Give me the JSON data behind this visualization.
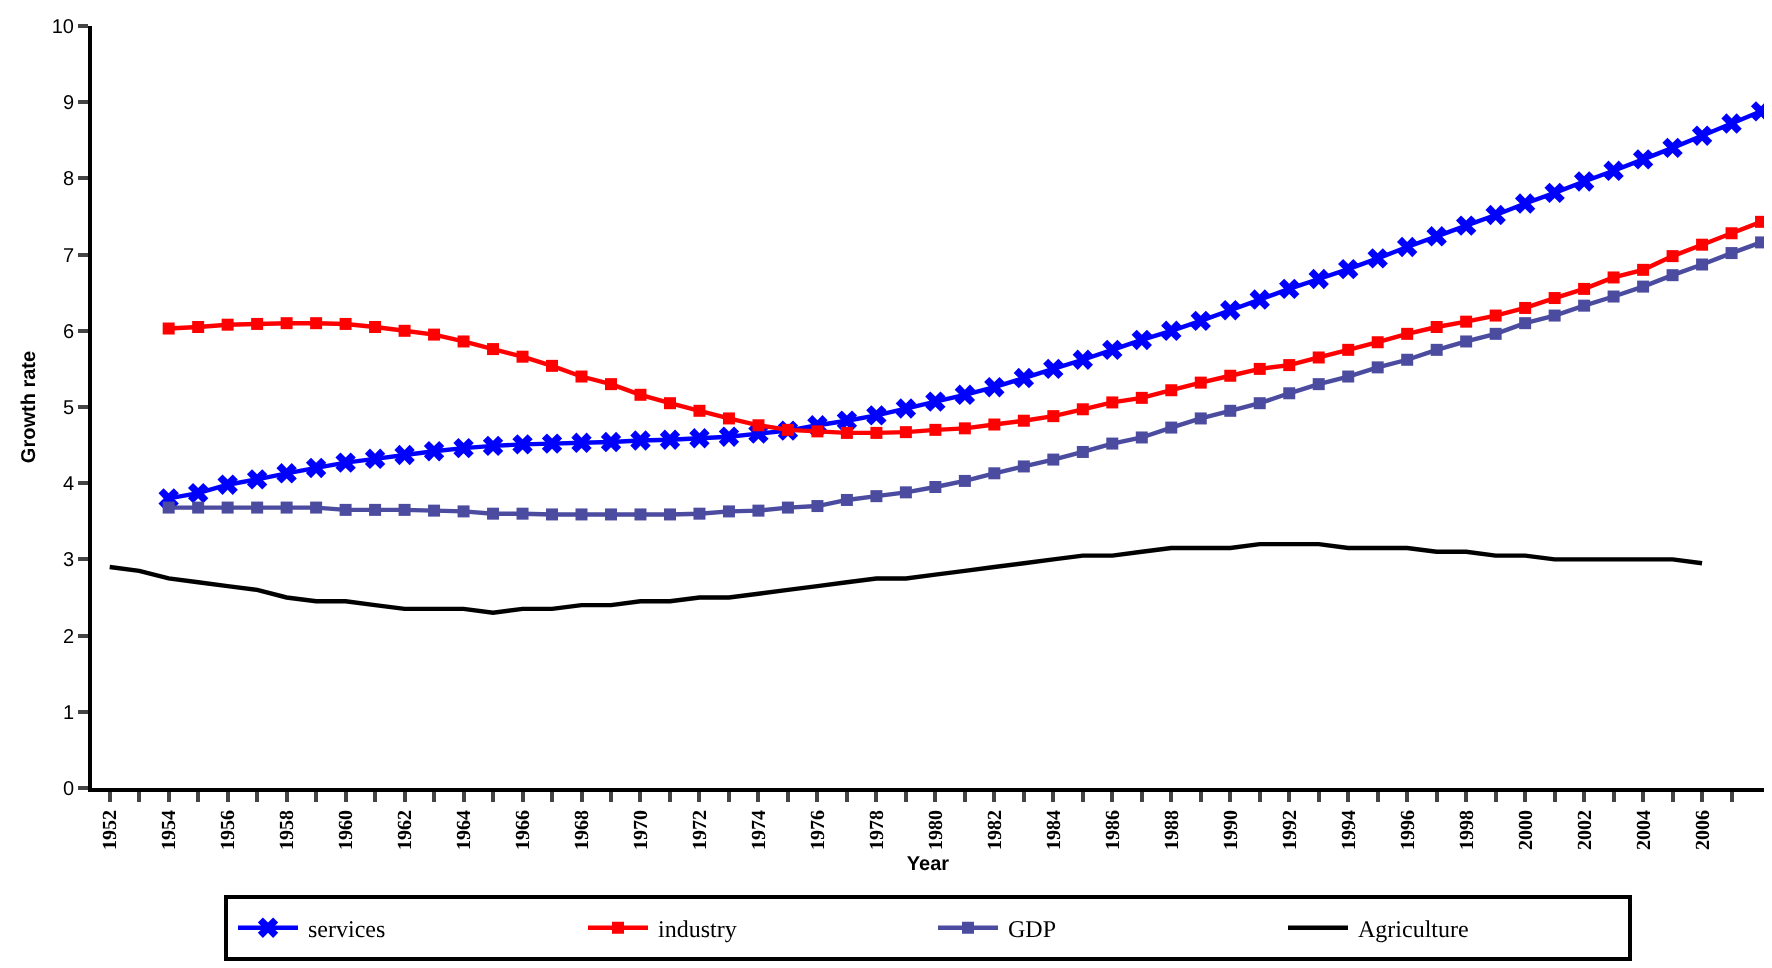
{
  "chart_data": {
    "type": "line",
    "xlabel": "Year",
    "ylabel": "Growth rate",
    "xlim": [
      1951.4,
      2008.1
    ],
    "ylim": [
      0,
      10
    ],
    "yticks": [
      0,
      1,
      2,
      3,
      4,
      5,
      6,
      7,
      8,
      9,
      10
    ],
    "xticks": [
      1952,
      {
        "value": 1953,
        "label": null
      },
      1954,
      {
        "value": 1955,
        "label": null
      },
      1956,
      {
        "value": 1957,
        "label": null
      },
      1958,
      {
        "value": 1959,
        "label": null
      },
      1960,
      {
        "value": 1961,
        "label": null
      },
      1962,
      {
        "value": 1963,
        "label": null
      },
      1964,
      {
        "value": 1965,
        "label": null
      },
      1966,
      {
        "value": 1967,
        "label": null
      },
      1968,
      {
        "value": 1969,
        "label": null
      },
      1970,
      {
        "value": 1971,
        "label": null
      },
      1972,
      {
        "value": 1973,
        "label": null
      },
      1974,
      {
        "value": 1975,
        "label": null
      },
      1976,
      {
        "value": 1977,
        "label": null
      },
      1978,
      {
        "value": 1979,
        "label": null
      },
      1980,
      {
        "value": 1981,
        "label": null
      },
      1982,
      {
        "value": 1983,
        "label": null
      },
      1984,
      {
        "value": 1985,
        "label": null
      },
      1986,
      {
        "value": 1987,
        "label": null
      },
      1988,
      {
        "value": 1989,
        "label": null
      },
      1990,
      {
        "value": 1991,
        "label": null
      },
      1992,
      {
        "value": 1993,
        "label": null
      },
      1994,
      {
        "value": 1995,
        "label": null
      },
      1996,
      {
        "value": 1997,
        "label": null
      },
      1998,
      {
        "value": 1999,
        "label": null
      },
      2000,
      {
        "value": 2001,
        "label": null
      },
      2002,
      {
        "value": 2003,
        "label": null
      },
      2004,
      {
        "value": 2005,
        "label": null
      },
      2006,
      {
        "value": 2007,
        "label": null
      }
    ],
    "grid": false,
    "legend": "bottom",
    "line_style": "solid",
    "series": [
      {
        "name": "services",
        "color": "#0000ff",
        "marker": "cross",
        "x": [
          1954,
          1955,
          1956,
          1957,
          1958,
          1959,
          1960,
          1961,
          1962,
          1963,
          1964,
          1965,
          1966,
          1967,
          1968,
          1969,
          1970,
          1971,
          1972,
          1973,
          1974,
          1975,
          1976,
          1977,
          1978,
          1979,
          1980,
          1981,
          1982,
          1983,
          1984,
          1985,
          1986,
          1987,
          1988,
          1989,
          1990,
          1991,
          1992,
          1993,
          1994,
          1995,
          1996,
          1997,
          1998,
          1999,
          2000,
          2001,
          2002,
          2003,
          2004,
          2005,
          2006,
          2007,
          2008
        ],
        "values": [
          3.8,
          3.87,
          3.98,
          4.05,
          4.13,
          4.2,
          4.27,
          4.32,
          4.37,
          4.42,
          4.46,
          4.49,
          4.51,
          4.52,
          4.53,
          4.54,
          4.56,
          4.57,
          4.59,
          4.61,
          4.65,
          4.69,
          4.76,
          4.82,
          4.89,
          4.98,
          5.07,
          5.16,
          5.26,
          5.38,
          5.5,
          5.62,
          5.75,
          5.88,
          6.0,
          6.13,
          6.27,
          6.41,
          6.55,
          6.68,
          6.81,
          6.95,
          7.1,
          7.24,
          7.38,
          7.52,
          7.67,
          7.81,
          7.96,
          8.1,
          8.25,
          8.4,
          8.56,
          8.72,
          8.88
        ]
      },
      {
        "name": "industry",
        "color": "#ff0000",
        "marker": "square",
        "x": [
          1954,
          1955,
          1956,
          1957,
          1958,
          1959,
          1960,
          1961,
          1962,
          1963,
          1964,
          1965,
          1966,
          1967,
          1968,
          1969,
          1970,
          1971,
          1972,
          1973,
          1974,
          1975,
          1976,
          1977,
          1978,
          1979,
          1980,
          1981,
          1982,
          1983,
          1984,
          1985,
          1986,
          1987,
          1988,
          1989,
          1990,
          1991,
          1992,
          1993,
          1994,
          1995,
          1996,
          1997,
          1998,
          1999,
          2000,
          2001,
          2002,
          2003,
          2004,
          2005,
          2006,
          2007,
          2008
        ],
        "values": [
          6.03,
          6.05,
          6.08,
          6.09,
          6.1,
          6.1,
          6.09,
          6.05,
          6.0,
          5.95,
          5.86,
          5.76,
          5.66,
          5.54,
          5.4,
          5.3,
          5.16,
          5.05,
          4.95,
          4.85,
          4.76,
          4.7,
          4.68,
          4.66,
          4.66,
          4.67,
          4.7,
          4.72,
          4.77,
          4.82,
          4.88,
          4.97,
          5.06,
          5.12,
          5.22,
          5.32,
          5.41,
          5.5,
          5.55,
          5.65,
          5.75,
          5.85,
          5.96,
          6.05,
          6.12,
          6.2,
          6.3,
          6.43,
          6.55,
          6.7,
          6.8,
          6.98,
          7.13,
          7.28,
          7.43
        ]
      },
      {
        "name": "GDP",
        "color": "#4b4ba0",
        "marker": "square",
        "x": [
          1954,
          1955,
          1956,
          1957,
          1958,
          1959,
          1960,
          1961,
          1962,
          1963,
          1964,
          1965,
          1966,
          1967,
          1968,
          1969,
          1970,
          1971,
          1972,
          1973,
          1974,
          1975,
          1976,
          1977,
          1978,
          1979,
          1980,
          1981,
          1982,
          1983,
          1984,
          1985,
          1986,
          1987,
          1988,
          1989,
          1990,
          1991,
          1992,
          1993,
          1994,
          1995,
          1996,
          1997,
          1998,
          1999,
          2000,
          2001,
          2002,
          2003,
          2004,
          2005,
          2006,
          2007,
          2008
        ],
        "values": [
          3.68,
          3.68,
          3.68,
          3.68,
          3.68,
          3.68,
          3.65,
          3.65,
          3.65,
          3.64,
          3.63,
          3.6,
          3.6,
          3.59,
          3.59,
          3.59,
          3.59,
          3.59,
          3.6,
          3.63,
          3.64,
          3.68,
          3.7,
          3.78,
          3.83,
          3.88,
          3.95,
          4.03,
          4.13,
          4.22,
          4.31,
          4.41,
          4.52,
          4.6,
          4.73,
          4.85,
          4.95,
          5.05,
          5.18,
          5.3,
          5.4,
          5.52,
          5.62,
          5.75,
          5.86,
          5.96,
          6.1,
          6.2,
          6.33,
          6.45,
          6.58,
          6.73,
          6.87,
          7.02,
          7.16
        ]
      },
      {
        "name": "Agriculture",
        "color": "#000000",
        "marker": "none",
        "x": [
          1952,
          1953,
          1954,
          1955,
          1956,
          1957,
          1958,
          1959,
          1960,
          1961,
          1962,
          1963,
          1964,
          1965,
          1966,
          1967,
          1968,
          1969,
          1970,
          1971,
          1972,
          1973,
          1974,
          1975,
          1976,
          1977,
          1978,
          1979,
          1980,
          1981,
          1982,
          1983,
          1984,
          1985,
          1986,
          1987,
          1988,
          1989,
          1990,
          1991,
          1992,
          1993,
          1994,
          1995,
          1996,
          1997,
          1998,
          1999,
          2000,
          2001,
          2002,
          2003,
          2004,
          2005,
          2006
        ],
        "values": [
          2.9,
          2.85,
          2.75,
          2.7,
          2.65,
          2.6,
          2.5,
          2.45,
          2.45,
          2.4,
          2.35,
          2.35,
          2.35,
          2.3,
          2.35,
          2.35,
          2.4,
          2.4,
          2.45,
          2.45,
          2.5,
          2.5,
          2.55,
          2.6,
          2.65,
          2.7,
          2.75,
          2.75,
          2.8,
          2.85,
          2.9,
          2.95,
          3.0,
          3.05,
          3.05,
          3.1,
          3.15,
          3.15,
          3.15,
          3.2,
          3.2,
          3.2,
          3.15,
          3.15,
          3.15,
          3.1,
          3.1,
          3.05,
          3.05,
          3.0,
          3.0,
          3.0,
          3.0,
          3.0,
          2.95
        ]
      }
    ]
  }
}
